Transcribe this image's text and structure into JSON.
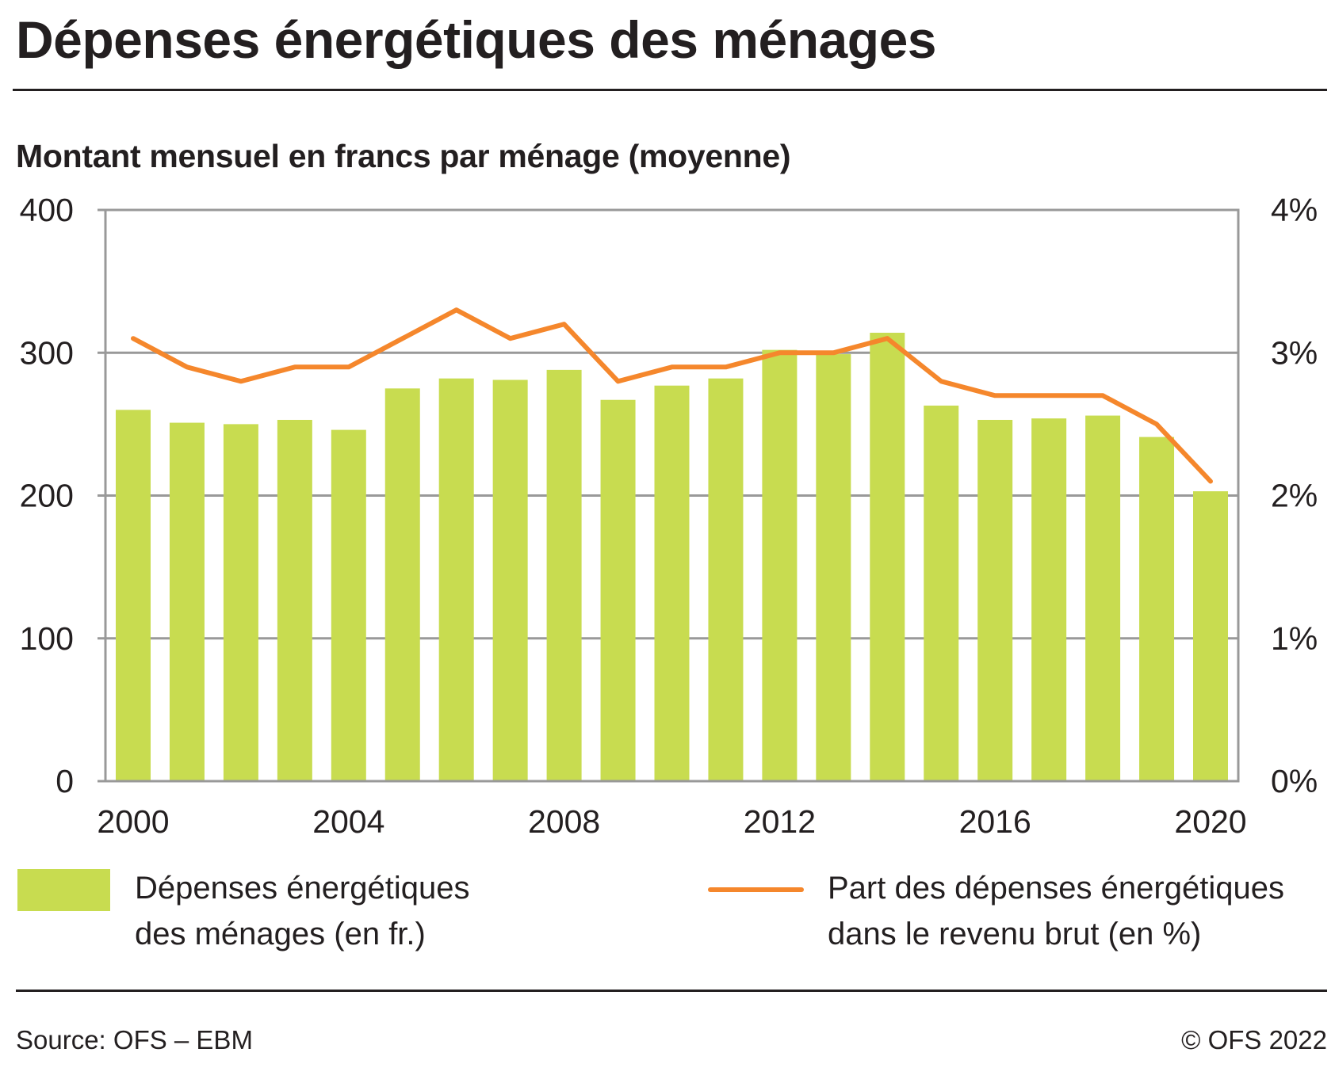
{
  "header": {
    "title": "Dépenses énergétiques des ménages",
    "subtitle": "Montant mensuel en francs par ménage (moyenne)"
  },
  "colors": {
    "bar": "#c8dc50",
    "line": "#f5872c",
    "grid": "#999999",
    "text": "#231f20"
  },
  "chart_data": {
    "type": "bar",
    "title": "Dépenses énergétiques des ménages",
    "subtitle": "Montant mensuel en francs par ménage (moyenne)",
    "xlabel": "",
    "ylabel": "",
    "categories": [
      "2000",
      "2001",
      "2002",
      "2003",
      "2004",
      "2005",
      "2006",
      "2007",
      "2008",
      "2009",
      "2010",
      "2011",
      "2012",
      "2013",
      "2014",
      "2015",
      "2016",
      "2017",
      "2018",
      "2019",
      "2020"
    ],
    "x_tick_labels": [
      "2000",
      "2004",
      "2008",
      "2012",
      "2016",
      "2020"
    ],
    "y_left": {
      "ylim": [
        0,
        400
      ],
      "ticks": [
        0,
        100,
        200,
        300,
        400
      ],
      "tick_labels": [
        "0",
        "100",
        "200",
        "300",
        "400"
      ]
    },
    "y_right": {
      "ylim": [
        0,
        4
      ],
      "ticks": [
        0,
        1,
        2,
        3,
        4
      ],
      "tick_labels": [
        "0%",
        "1%",
        "2%",
        "3%",
        "4%"
      ]
    },
    "grid": true,
    "series": [
      {
        "name": "Dépenses énergétiques des ménages (en fr.)",
        "type": "bar",
        "axis": "left",
        "values": [
          260,
          251,
          250,
          253,
          246,
          275,
          282,
          281,
          288,
          267,
          277,
          282,
          302,
          299,
          314,
          263,
          253,
          254,
          256,
          241,
          203
        ]
      },
      {
        "name": "Part des dépenses énergétiques dans le revenu brut (en %)",
        "type": "line",
        "axis": "right",
        "values": [
          3.1,
          2.9,
          2.8,
          2.9,
          2.9,
          3.1,
          3.3,
          3.1,
          3.2,
          2.8,
          2.9,
          2.9,
          3.0,
          3.0,
          3.1,
          2.8,
          2.7,
          2.7,
          2.7,
          2.5,
          2.1
        ]
      }
    ],
    "legend": {
      "placement": "bottom",
      "items": [
        {
          "lines": [
            "Dépenses énergétiques",
            "des ménages (en fr.)"
          ],
          "kind": "bar"
        },
        {
          "lines": [
            "Part des dépenses énergétiques",
            "dans le revenu brut (en %)"
          ],
          "kind": "line"
        }
      ]
    }
  },
  "footer": {
    "source": "Source: OFS – EBM",
    "copyright": "© OFS 2022"
  }
}
